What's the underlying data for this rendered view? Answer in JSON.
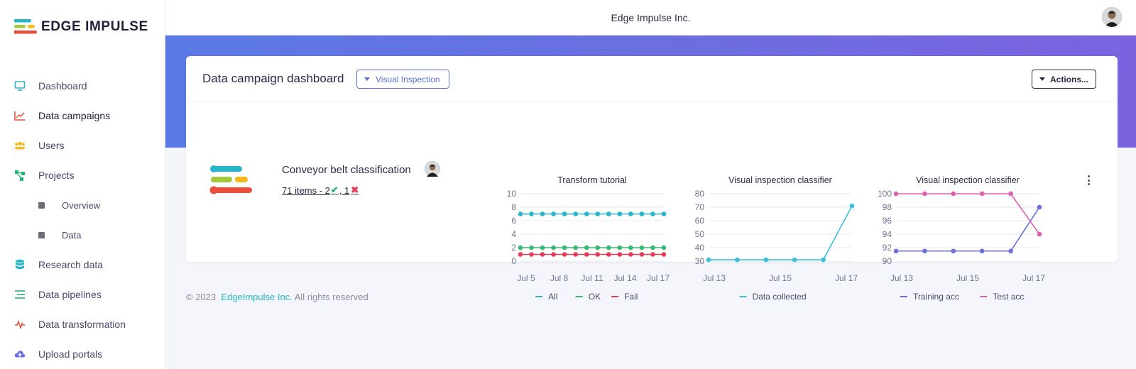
{
  "brand": {
    "logo_text": "EDGE IMPULSE"
  },
  "header": {
    "org_name": "Edge Impulse Inc."
  },
  "sidebar": {
    "items": [
      {
        "label": "Dashboard",
        "icon": "monitor-icon",
        "color": "#26b5c9"
      },
      {
        "label": "Data campaigns",
        "icon": "trend-chart-icon",
        "color": "#e94e3c",
        "active": true
      },
      {
        "label": "Users",
        "icon": "users-icon",
        "color": "#f5b818"
      },
      {
        "label": "Projects",
        "icon": "project-tree-icon",
        "color": "#22b573"
      },
      {
        "label": "Overview",
        "icon": "square-icon",
        "color": "#6d6d7a",
        "sub": true
      },
      {
        "label": "Data",
        "icon": "square-icon",
        "color": "#6d6d7a",
        "sub": true
      },
      {
        "label": "Research data",
        "icon": "database-icon",
        "color": "#26b5c9"
      },
      {
        "label": "Data pipelines",
        "icon": "pipeline-lines-icon",
        "color": "#22b573"
      },
      {
        "label": "Data transformation",
        "icon": "pulse-icon",
        "color": "#e94e3c"
      },
      {
        "label": "Upload portals",
        "icon": "cloud-upload-icon",
        "color": "#6b6fe0"
      }
    ]
  },
  "dashboard": {
    "title": "Data campaign dashboard",
    "campaign_select": "Visual Inspection",
    "actions_label": "Actions...",
    "campaign": {
      "name": "Conveyor belt classification",
      "items_text": "71 items - 2",
      "fail_text": ", 1"
    }
  },
  "chart_data": [
    {
      "type": "line",
      "title": "Transform tutorial",
      "x_ticks": [
        "Jul 5",
        "Jul 8",
        "Jul 11",
        "Jul 14",
        "Jul 17"
      ],
      "y_ticks": [
        0,
        2,
        4,
        6,
        8,
        10
      ],
      "ylim": [
        0,
        10
      ],
      "series": [
        {
          "name": "All",
          "color": "#26b5c9",
          "values": [
            7,
            7,
            7,
            7,
            7,
            7,
            7,
            7,
            7,
            7,
            7,
            7,
            7,
            7
          ]
        },
        {
          "name": "OK",
          "color": "#3cb872",
          "values": [
            2,
            2,
            2,
            2,
            2,
            2,
            2,
            2,
            2,
            2,
            2,
            2,
            2,
            2
          ]
        },
        {
          "name": "Fail",
          "color": "#e33d5a",
          "values": [
            1,
            1,
            1,
            1,
            1,
            1,
            1,
            1,
            1,
            1,
            1,
            1,
            1,
            1
          ]
        }
      ]
    },
    {
      "type": "line",
      "title": "Visual inspection classifier",
      "x_ticks": [
        "Jul 13",
        "Jul 15",
        "Jul 17"
      ],
      "y_ticks": [
        30,
        40,
        50,
        60,
        70,
        80
      ],
      "ylim": [
        30,
        80
      ],
      "series": [
        {
          "name": "Data collected",
          "color": "#38c0dc",
          "values": [
            31,
            31,
            31,
            31,
            31,
            71
          ]
        }
      ]
    },
    {
      "type": "line",
      "title": "Visual inspection classifier",
      "x_ticks": [
        "Jul 13",
        "Jul 15",
        "Jul 17"
      ],
      "y_ticks": [
        90,
        92,
        94,
        96,
        98,
        100
      ],
      "ylim": [
        90,
        100
      ],
      "series": [
        {
          "name": "Training acc",
          "color": "#6b6fdc",
          "values": [
            91.5,
            91.5,
            91.5,
            91.5,
            91.5,
            98
          ]
        },
        {
          "name": "Test acc",
          "color": "#e060b0",
          "values": [
            100,
            100,
            100,
            100,
            100,
            94
          ]
        }
      ]
    }
  ],
  "footer": {
    "copyright": "© 2023",
    "company": "EdgeImpulse Inc.",
    "rights": "All rights reserved"
  }
}
